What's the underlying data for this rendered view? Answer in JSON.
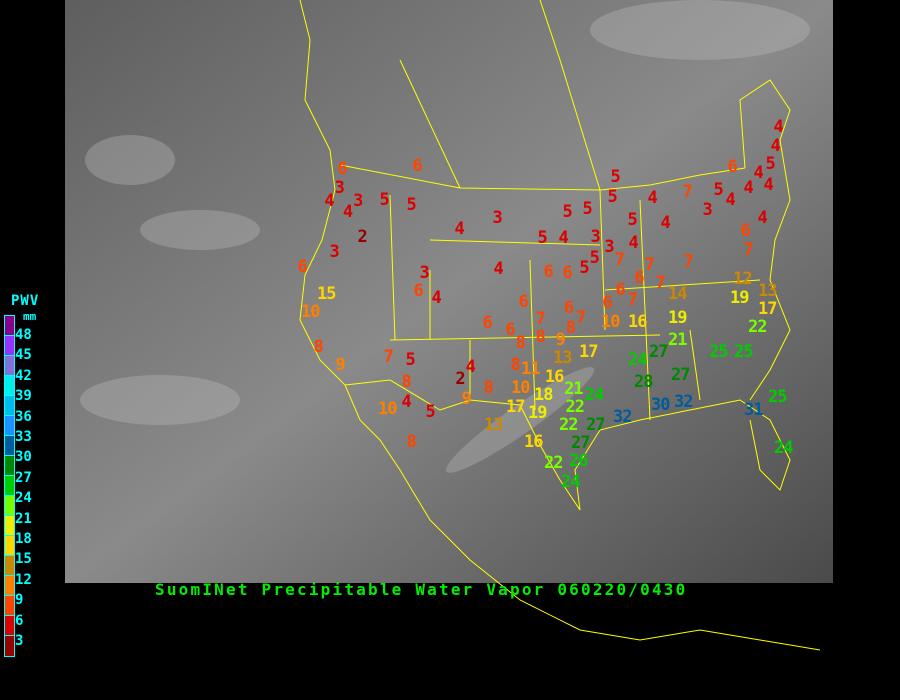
{
  "title": "SuomINet Precipitable Water Vapor 060220/0430",
  "legend": {
    "title": "PWV",
    "unit": "mm",
    "ticks": [
      "48",
      "45",
      "42",
      "39",
      "36",
      "33",
      "30",
      "27",
      "24",
      "21",
      "18",
      "15",
      "12",
      "9",
      "6",
      "3"
    ],
    "colors": [
      "#8b008b",
      "#9b30ff",
      "#8470dd",
      "#00eeee",
      "#00bbee",
      "#1e90ff",
      "#005c9c",
      "#008800",
      "#00cc00",
      "#77ff00",
      "#eeee00",
      "#ffd700",
      "#cc8800",
      "#ff8000",
      "#ff4400",
      "#dd0000",
      "#990000"
    ]
  },
  "map": {
    "background": "#707070",
    "border_color": "#ffff00"
  },
  "stations": [
    6,
    3,
    4,
    3,
    4,
    5,
    5,
    6,
    2,
    3,
    6,
    15,
    10,
    4,
    3,
    4,
    3,
    6,
    4,
    5,
    5,
    5,
    5,
    4,
    7,
    5,
    4,
    3,
    5,
    4,
    6,
    4,
    4,
    5,
    4,
    4,
    4,
    4,
    6,
    7,
    5,
    4,
    3,
    3,
    7,
    5,
    5,
    6,
    6,
    4,
    7,
    6,
    7,
    7,
    6,
    7,
    14,
    12,
    19,
    13,
    17,
    6,
    6,
    6,
    7,
    6,
    6,
    7,
    8,
    8,
    9,
    8,
    10,
    16,
    19,
    22,
    13,
    17,
    21,
    24,
    27,
    25,
    25,
    28,
    27,
    8,
    11,
    10,
    16,
    18,
    21,
    24,
    17,
    19,
    22,
    32,
    30,
    32,
    31,
    25,
    22,
    27,
    13,
    16,
    27,
    26,
    22,
    24,
    24,
    8,
    9,
    7,
    5,
    8,
    4,
    2,
    8,
    9,
    10,
    4,
    5,
    8
  ]
}
